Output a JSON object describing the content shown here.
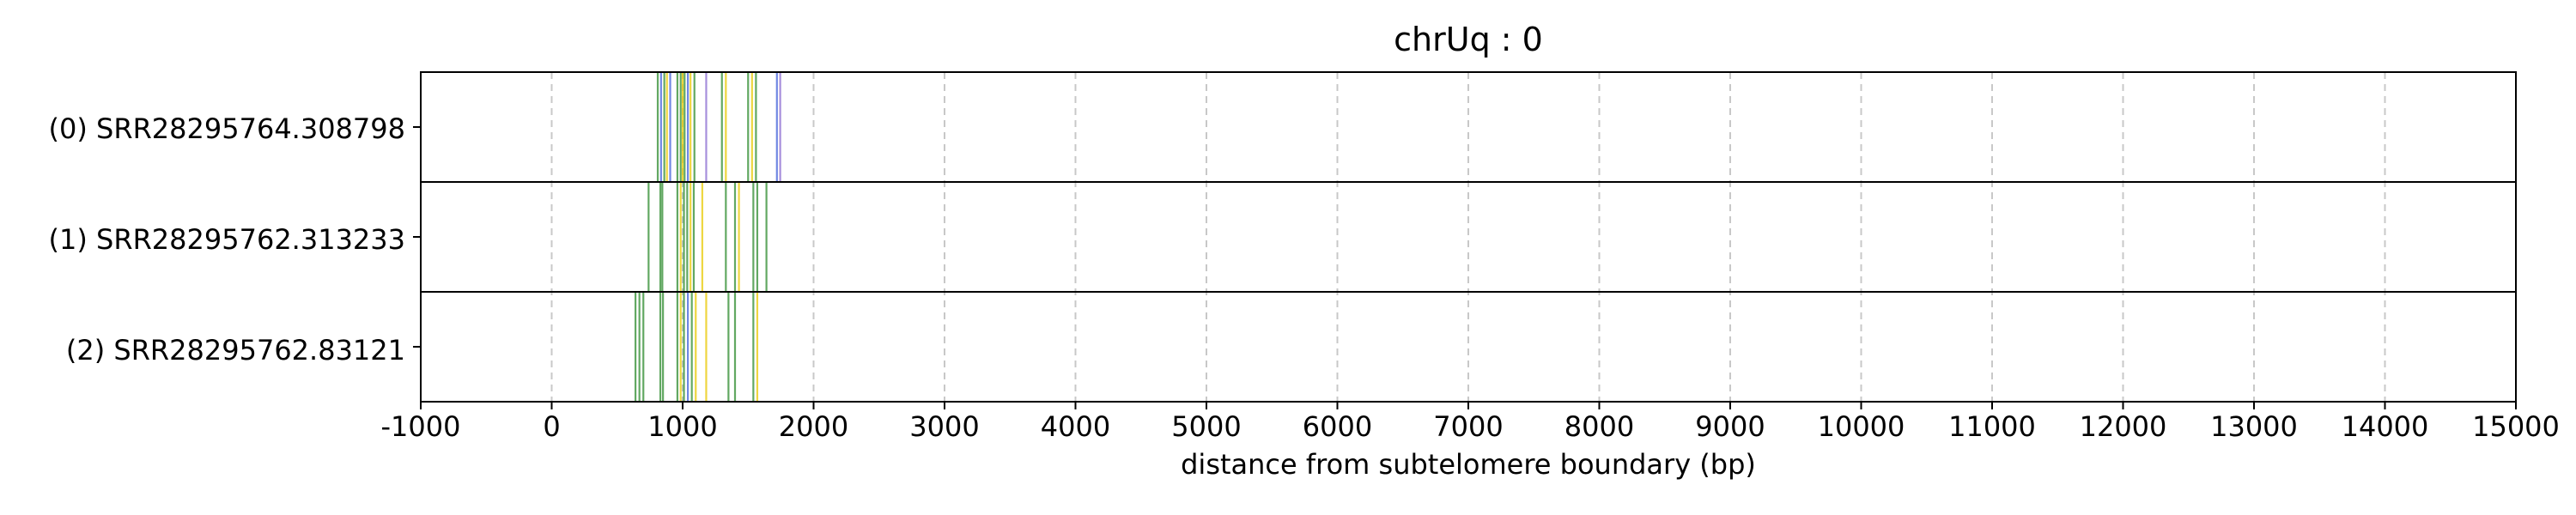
{
  "chart_data": {
    "type": "bar",
    "title": "chrUq : 0",
    "xlabel": "distance from subtelomere boundary (bp)",
    "xlim": [
      -1000,
      15000
    ],
    "xticks": [
      -1000,
      0,
      1000,
      2000,
      3000,
      4000,
      5000,
      6000,
      7000,
      8000,
      9000,
      10000,
      11000,
      12000,
      13000,
      14000,
      15000
    ],
    "xtick_labels": [
      "-1000",
      "0",
      "1000",
      "2000",
      "3000",
      "4000",
      "5000",
      "6000",
      "7000",
      "8000",
      "9000",
      "10000",
      "11000",
      "12000",
      "13000",
      "14000",
      "15000"
    ],
    "grid": "vertical dashed",
    "colors": {
      "green": "#2e8b2e",
      "yellow": "#e8c800",
      "blue": "#3f5fd8",
      "purple": "#8a6ad0",
      "gridline": "#c8c8c8",
      "frame": "#000000"
    },
    "reads": [
      {
        "label": "(0) SRR28295764.308798",
        "marks": [
          {
            "x": 810,
            "color": "#2e8b2e"
          },
          {
            "x": 835,
            "color": "#3f5fd8"
          },
          {
            "x": 860,
            "color": "#2e8b2e"
          },
          {
            "x": 880,
            "color": "#e8c800"
          },
          {
            "x": 905,
            "color": "#3f5fd8"
          },
          {
            "x": 960,
            "color": "#2e8b2e"
          },
          {
            "x": 985,
            "color": "#2e8b2e"
          },
          {
            "x": 1000,
            "color": "#e8c800"
          },
          {
            "x": 1015,
            "color": "#2e8b2e"
          },
          {
            "x": 1040,
            "color": "#3f5fd8"
          },
          {
            "x": 1060,
            "color": "#e8c800"
          },
          {
            "x": 1090,
            "color": "#2e8b2e"
          },
          {
            "x": 1180,
            "color": "#8a6ad0"
          },
          {
            "x": 1300,
            "color": "#2e8b2e"
          },
          {
            "x": 1330,
            "color": "#e8c800"
          },
          {
            "x": 1500,
            "color": "#2e8b2e"
          },
          {
            "x": 1530,
            "color": "#e8c800"
          },
          {
            "x": 1560,
            "color": "#2e8b2e"
          },
          {
            "x": 1720,
            "color": "#3f5fd8"
          },
          {
            "x": 1745,
            "color": "#8a6ad0"
          }
        ]
      },
      {
        "label": "(1) SRR28295762.313233",
        "marks": [
          {
            "x": 740,
            "color": "#2e8b2e"
          },
          {
            "x": 830,
            "color": "#2e8b2e"
          },
          {
            "x": 845,
            "color": "#2e8b2e"
          },
          {
            "x": 960,
            "color": "#2e8b2e"
          },
          {
            "x": 985,
            "color": "#e8c800"
          },
          {
            "x": 1010,
            "color": "#2e8b2e"
          },
          {
            "x": 1035,
            "color": "#2e8b2e"
          },
          {
            "x": 1060,
            "color": "#e8c800"
          },
          {
            "x": 1085,
            "color": "#2e8b2e"
          },
          {
            "x": 1150,
            "color": "#e8c800"
          },
          {
            "x": 1330,
            "color": "#2e8b2e"
          },
          {
            "x": 1400,
            "color": "#2e8b2e"
          },
          {
            "x": 1430,
            "color": "#e8c800"
          },
          {
            "x": 1540,
            "color": "#2e8b2e"
          },
          {
            "x": 1570,
            "color": "#2e8b2e"
          },
          {
            "x": 1640,
            "color": "#2e8b2e"
          }
        ]
      },
      {
        "label": "(2) SRR28295762.83121",
        "marks": [
          {
            "x": 640,
            "color": "#2e8b2e"
          },
          {
            "x": 670,
            "color": "#2e8b2e"
          },
          {
            "x": 700,
            "color": "#2e8b2e"
          },
          {
            "x": 830,
            "color": "#2e8b2e"
          },
          {
            "x": 850,
            "color": "#2e8b2e"
          },
          {
            "x": 960,
            "color": "#2e8b2e"
          },
          {
            "x": 985,
            "color": "#e8c800"
          },
          {
            "x": 1010,
            "color": "#2e8b2e"
          },
          {
            "x": 1040,
            "color": "#3f5fd8"
          },
          {
            "x": 1070,
            "color": "#2e8b2e"
          },
          {
            "x": 1100,
            "color": "#e8c800"
          },
          {
            "x": 1180,
            "color": "#e8c800"
          },
          {
            "x": 1350,
            "color": "#2e8b2e"
          },
          {
            "x": 1400,
            "color": "#2e8b2e"
          },
          {
            "x": 1540,
            "color": "#2e8b2e"
          },
          {
            "x": 1570,
            "color": "#e8c800"
          }
        ]
      }
    ]
  }
}
